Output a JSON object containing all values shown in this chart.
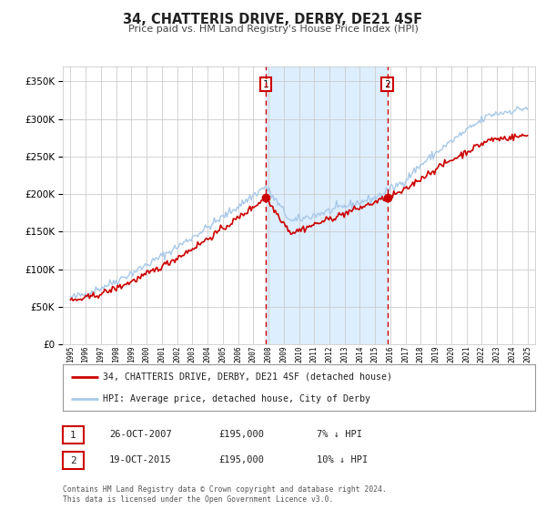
{
  "title": "34, CHATTERIS DRIVE, DERBY, DE21 4SF",
  "subtitle": "Price paid vs. HM Land Registry's House Price Index (HPI)",
  "background_color": "#ffffff",
  "grid_color": "#cccccc",
  "sale1_date": 2007.82,
  "sale1_price": 195000,
  "sale1_label": "1",
  "sale1_hpi_diff": "7% ↓ HPI",
  "sale1_date_str": "26-OCT-2007",
  "sale2_date": 2015.8,
  "sale2_price": 195000,
  "sale2_label": "2",
  "sale2_hpi_diff": "10% ↓ HPI",
  "sale2_date_str": "19-OCT-2015",
  "hpi_color": "#a8c8e8",
  "sold_color": "#cc0000",
  "shade_color": "#ddeeff",
  "marker_color": "#cc0000",
  "ylim_max": 370000,
  "xlim_min": 1994.5,
  "xlim_max": 2025.5,
  "yticks": [
    0,
    50000,
    100000,
    150000,
    200000,
    250000,
    300000,
    350000
  ],
  "legend_line1": "34, CHATTERIS DRIVE, DERBY, DE21 4SF (detached house)",
  "legend_line2": "HPI: Average price, detached house, City of Derby",
  "footnote": "Contains HM Land Registry data © Crown copyright and database right 2024.\nThis data is licensed under the Open Government Licence v3.0."
}
